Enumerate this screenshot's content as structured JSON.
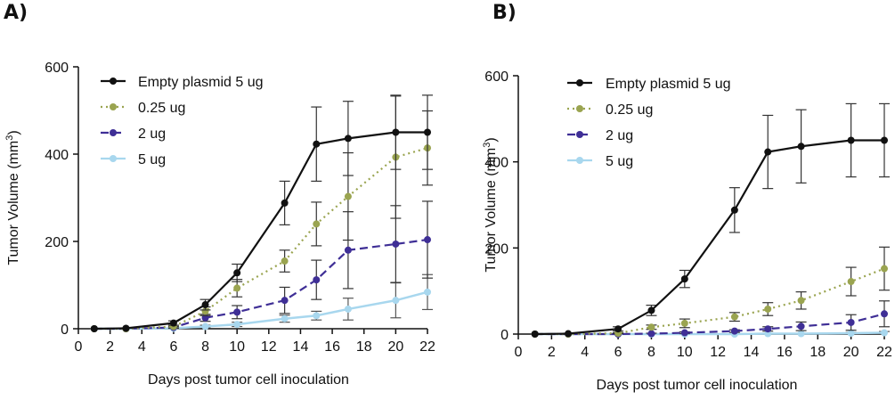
{
  "chart_data": [
    {
      "panel_label": "A)",
      "type": "line",
      "xlabel": "Days post tumor cell inoculation",
      "ylabel": "Tumor Volume (mm",
      "ylabel_sup": "3",
      "ylabel_close": ")",
      "xlim": [
        0,
        22
      ],
      "ylim": [
        0,
        600
      ],
      "xticks": [
        0,
        2,
        4,
        6,
        8,
        10,
        12,
        14,
        16,
        18,
        20,
        22
      ],
      "yticks": [
        0,
        200,
        400,
        600
      ],
      "legend_position": "top-left",
      "series": [
        {
          "name": "Empty plasmid 5 ug",
          "color": "#111111",
          "dash": "solid",
          "x": [
            1,
            3,
            6,
            8,
            10,
            13,
            15,
            17,
            20,
            22
          ],
          "y": [
            0,
            1,
            13,
            55,
            128,
            288,
            423,
            436,
            450,
            450
          ],
          "err": [
            0,
            1,
            5,
            12,
            20,
            50,
            85,
            85,
            85,
            85
          ]
        },
        {
          "name": "0.25 ug",
          "color": "#9aa450",
          "dash": "dot",
          "x": [
            1,
            3,
            6,
            8,
            10,
            13,
            15,
            17,
            20,
            22
          ],
          "y": [
            0,
            0,
            5,
            40,
            93,
            155,
            240,
            303,
            393,
            414
          ],
          "err": [
            0,
            0,
            3,
            10,
            20,
            25,
            50,
            100,
            140,
            85
          ]
        },
        {
          "name": "2 ug",
          "color": "#3f2f96",
          "dash": "dash",
          "x": [
            1,
            3,
            6,
            8,
            10,
            13,
            15,
            17,
            20,
            22
          ],
          "y": [
            0,
            0,
            3,
            25,
            38,
            65,
            112,
            180,
            194,
            204
          ],
          "err": [
            0,
            0,
            2,
            8,
            15,
            30,
            45,
            88,
            88,
            88
          ]
        },
        {
          "name": "5 ug",
          "color": "#a8d7ee",
          "dash": "solid",
          "x": [
            1,
            3,
            6,
            8,
            10,
            13,
            15,
            17,
            20,
            22
          ],
          "y": [
            0,
            0,
            1,
            5,
            10,
            23,
            30,
            45,
            65,
            84
          ],
          "err": [
            0,
            0,
            1,
            3,
            5,
            8,
            10,
            25,
            40,
            40
          ]
        }
      ]
    },
    {
      "panel_label": "B)",
      "type": "line",
      "xlabel": "Days post tumor cell inoculation",
      "ylabel": "Tumor Volume (mm",
      "ylabel_sup": "3",
      "ylabel_close": ")",
      "xlim": [
        0,
        22
      ],
      "ylim": [
        0,
        600
      ],
      "xticks": [
        0,
        2,
        4,
        6,
        8,
        10,
        12,
        14,
        16,
        18,
        20,
        22
      ],
      "yticks": [
        0,
        200,
        400,
        600
      ],
      "legend_position": "top-left",
      "series": [
        {
          "name": "Empty plasmid 5 ug",
          "color": "#111111",
          "dash": "solid",
          "x": [
            1,
            3,
            6,
            8,
            10,
            13,
            15,
            17,
            20,
            22
          ],
          "y": [
            0,
            1,
            12,
            55,
            128,
            288,
            423,
            436,
            450,
            450
          ],
          "err": [
            0,
            1,
            5,
            12,
            20,
            52,
            85,
            85,
            85,
            85
          ]
        },
        {
          "name": "0.25 ug",
          "color": "#9aa450",
          "dash": "dot",
          "x": [
            1,
            3,
            6,
            8,
            10,
            13,
            15,
            17,
            20,
            22
          ],
          "y": [
            0,
            0,
            2,
            16,
            25,
            40,
            58,
            78,
            122,
            152
          ],
          "err": [
            0,
            0,
            1,
            5,
            10,
            10,
            15,
            20,
            33,
            50
          ]
        },
        {
          "name": "2 ug",
          "color": "#3f2f96",
          "dash": "dash",
          "x": [
            1,
            3,
            6,
            8,
            10,
            13,
            15,
            17,
            20,
            22
          ],
          "y": [
            0,
            0,
            0,
            1,
            3,
            7,
            12,
            18,
            27,
            47
          ],
          "err": [
            0,
            0,
            0,
            1,
            2,
            3,
            5,
            10,
            18,
            30
          ]
        },
        {
          "name": "5 ug",
          "color": "#a8d7ee",
          "dash": "solid",
          "x": [
            1,
            3,
            6,
            8,
            10,
            13,
            15,
            17,
            20,
            22
          ],
          "y": [
            0,
            0,
            0,
            0,
            0,
            0,
            1,
            1,
            2,
            3
          ],
          "err": [
            0,
            0,
            0,
            0,
            0,
            0,
            1,
            1,
            2,
            3
          ]
        }
      ]
    }
  ]
}
